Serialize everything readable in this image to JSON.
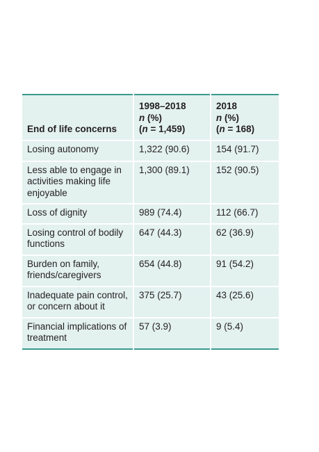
{
  "table": {
    "header": [
      {
        "lines": [
          "End of life concerns"
        ]
      },
      {
        "period": "1998–2018",
        "stat": [
          "n",
          " (%)"
        ],
        "total": [
          "(",
          "n",
          " = 1,459)"
        ]
      },
      {
        "period": "2018",
        "stat": [
          "n",
          " (%)"
        ],
        "total": [
          "(",
          "n",
          " = 168)"
        ]
      }
    ],
    "rows": [
      [
        "Losing autonomy",
        "1,322 (90.6)",
        "154 (91.7)"
      ],
      [
        "Less able to engage in activities making life enjoyable",
        "1,300 (89.1)",
        "152 (90.5)"
      ],
      [
        "Loss of dignity",
        "989 (74.4)",
        "112 (66.7)"
      ],
      [
        "Losing control of bodily functions",
        "647 (44.3)",
        "62 (36.9)"
      ],
      [
        "Burden on family, friends/caregivers",
        "654 (44.8)",
        "91 (54.2)"
      ],
      [
        "Inadequate pain control, or concern about it",
        "375 (25.7)",
        "43 (25.6)"
      ],
      [
        "Financial implications of treatment",
        "57 (3.9)",
        "9 (5.4)"
      ]
    ]
  }
}
